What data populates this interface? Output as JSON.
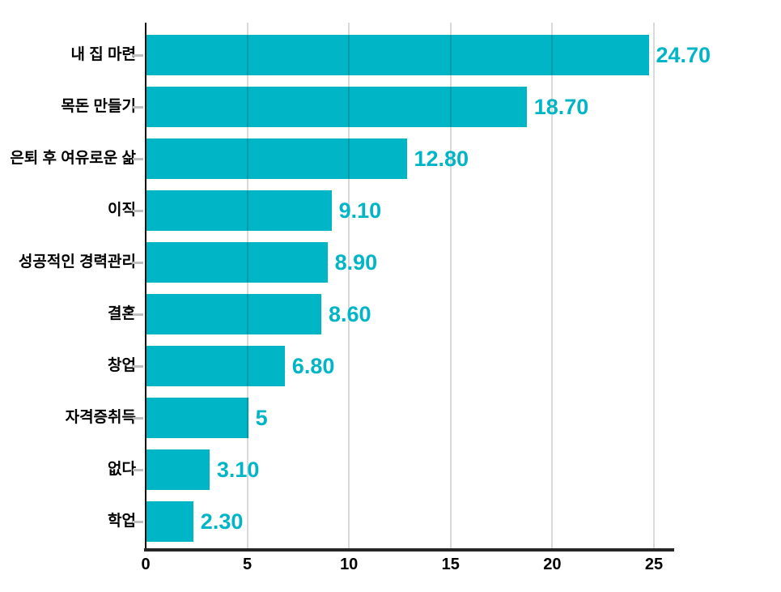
{
  "chart_data": {
    "type": "bar",
    "orientation": "horizontal",
    "title": "",
    "xlabel": "",
    "ylabel": "",
    "categories": [
      "내 집 마련",
      "목돈 만들기",
      "은퇴 후 여유로운 삶",
      "이직",
      "성공적인 경력관리",
      "결혼",
      "창업",
      "자격증취득",
      "없다",
      "학업"
    ],
    "values": [
      24.7,
      18.7,
      12.8,
      9.1,
      8.9,
      8.6,
      6.8,
      5,
      3.1,
      2.3
    ],
    "value_labels": [
      "24.70",
      "18.70",
      "12.80",
      "9.10",
      "8.90",
      "8.60",
      "6.80",
      "5",
      "3.10",
      "2.30"
    ],
    "x_ticks": [
      "0",
      "5",
      "10",
      "15",
      "20",
      "25"
    ],
    "x_tick_values": [
      0,
      5,
      10,
      15,
      20,
      25
    ],
    "xlim": [
      0,
      26
    ],
    "grid": "vertical-gridlines-at-ticks",
    "legend": "none",
    "colors": {
      "bar": "#00b5c5",
      "value_label": "#00b5c5",
      "axis_line": "#262626",
      "gridline": "#d9d9d9",
      "tick_label": "#000000",
      "category_label": "#000000",
      "background": "#ffffff"
    }
  }
}
